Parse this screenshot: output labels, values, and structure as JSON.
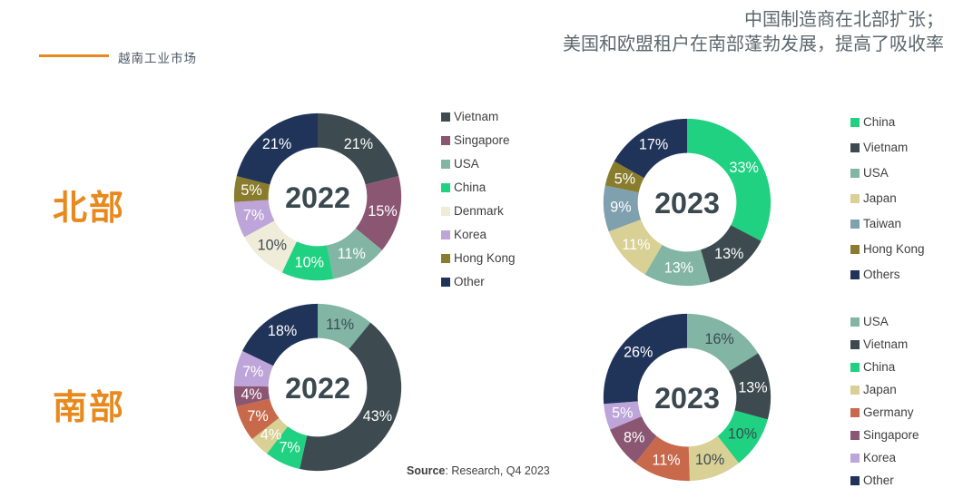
{
  "brand": {
    "label": "越南工业市场",
    "accent_color": "#E8891D"
  },
  "headline": {
    "line1": "中国制造商在北部扩张；",
    "line2": "美国和欧盟租户在南部蓬勃发展，提高了吸收率",
    "color": "#5C676D"
  },
  "row_labels": {
    "north": "北部",
    "south": "南部"
  },
  "source": {
    "bold": "Source",
    "rest": ": Research, Q4 2023"
  },
  "colors": {
    "vietnam_slate": "#3D4B50",
    "singapore_mauve": "#8A5672",
    "usa_sage": "#82B5A4",
    "china_emerald": "#1FD181",
    "denmark_cream": "#EFECDA",
    "korea_lavender": "#BDA4D9",
    "hongkong_olive": "#8A7C2D",
    "other_navy": "#20345A",
    "japan_khaki": "#D8D094",
    "taiwan_steel": "#7FA0AF",
    "germany_terracotta": "#C8694B",
    "dark_value_label": "#3C4A52",
    "year_text": "#3A484F"
  },
  "chart_data": [
    {
      "type": "pie",
      "id": "north-2022",
      "region": "北部",
      "center_label": "2022",
      "donut_hole_ratio": 0.59,
      "start_angle_deg": 0,
      "show_legend": true,
      "legend_position": "right",
      "slices": [
        {
          "label": "Vietnam",
          "value": 21,
          "display": "21%",
          "color": "#3D4B50",
          "label_color": "#FFFFFF"
        },
        {
          "label": "Singapore",
          "value": 15,
          "display": "15%",
          "color": "#8A5672",
          "label_color": "#FFFFFF"
        },
        {
          "label": "USA",
          "value": 11,
          "display": "11%",
          "color": "#82B5A4",
          "label_color": "#FFFFFF"
        },
        {
          "label": "China",
          "value": 10,
          "display": "10%",
          "color": "#1FD181",
          "label_color": "#FFFFFF"
        },
        {
          "label": "Denmark",
          "value": 10,
          "display": "10%",
          "color": "#EFECDA",
          "label_color": "#3C4A52"
        },
        {
          "label": "Korea",
          "value": 7,
          "display": "7%",
          "color": "#BDA4D9",
          "label_color": "#FFFFFF"
        },
        {
          "label": "Hong Kong",
          "value": 5,
          "display": "5%",
          "color": "#8A7C2D",
          "label_color": "#FFFFFF"
        },
        {
          "label": "Other",
          "value": 21,
          "display": "21%",
          "color": "#20345A",
          "label_color": "#FFFFFF"
        }
      ]
    },
    {
      "type": "pie",
      "id": "north-2023",
      "region": "北部",
      "center_label": "2023",
      "donut_hole_ratio": 0.59,
      "start_angle_deg": 0,
      "show_legend": true,
      "legend_position": "right",
      "slices": [
        {
          "label": "China",
          "value": 33,
          "display": "33%",
          "color": "#1FD181",
          "label_color": "#FFFFFF"
        },
        {
          "label": "Vietnam",
          "value": 13,
          "display": "13%",
          "color": "#3D4B50",
          "label_color": "#FFFFFF"
        },
        {
          "label": "USA",
          "value": 13,
          "display": "13%",
          "color": "#82B5A4",
          "label_color": "#FFFFFF"
        },
        {
          "label": "Japan",
          "value": 11,
          "display": "11%",
          "color": "#D8D094",
          "label_color": "#FFFFFF"
        },
        {
          "label": "Taiwan",
          "value": 9,
          "display": "9%",
          "color": "#7FA0AF",
          "label_color": "#FFFFFF"
        },
        {
          "label": "Hong Kong",
          "value": 5,
          "display": "5%",
          "color": "#8A7C2D",
          "label_color": "#FFFFFF"
        },
        {
          "label": "Others",
          "value": 17,
          "display": "17%",
          "color": "#20345A",
          "label_color": "#FFFFFF"
        }
      ]
    },
    {
      "type": "pie",
      "id": "south-2022",
      "region": "南部",
      "center_label": "2022",
      "donut_hole_ratio": 0.59,
      "start_angle_deg": 0,
      "show_legend": false,
      "slices": [
        {
          "label": "USA",
          "value": 11,
          "display": "11%",
          "color": "#82B5A4",
          "label_color": "#3C4A52"
        },
        {
          "label": "Vietnam",
          "value": 43,
          "display": "43%",
          "color": "#3D4B50",
          "label_color": "#FFFFFF"
        },
        {
          "label": "China",
          "value": 7,
          "display": "7%",
          "color": "#1FD181",
          "label_color": "#FFFFFF"
        },
        {
          "label": "Japan",
          "value": 4,
          "display": "4%",
          "color": "#D8D094",
          "label_color": "#FFFFFF"
        },
        {
          "label": "Germany",
          "value": 7,
          "display": "7%",
          "color": "#C8694B",
          "label_color": "#FFFFFF"
        },
        {
          "label": "Singapore",
          "value": 4,
          "display": "4%",
          "color": "#8A5672",
          "label_color": "#FFFFFF"
        },
        {
          "label": "Korea",
          "value": 7,
          "display": "7%",
          "color": "#BDA4D9",
          "label_color": "#FFFFFF"
        },
        {
          "label": "Other",
          "value": 18,
          "display": "18%",
          "color": "#20345A",
          "label_color": "#FFFFFF"
        }
      ]
    },
    {
      "type": "pie",
      "id": "south-2023",
      "region": "南部",
      "center_label": "2023",
      "donut_hole_ratio": 0.59,
      "start_angle_deg": 0,
      "show_legend": true,
      "legend_position": "right",
      "slices": [
        {
          "label": "USA",
          "value": 16,
          "display": "16%",
          "color": "#82B5A4",
          "label_color": "#3C4A52"
        },
        {
          "label": "Vietnam",
          "value": 13,
          "display": "13%",
          "color": "#3D4B50",
          "label_color": "#FFFFFF"
        },
        {
          "label": "China",
          "value": 10,
          "display": "10%",
          "color": "#1FD181",
          "label_color": "#3C4A52"
        },
        {
          "label": "Japan",
          "value": 10,
          "display": "10%",
          "color": "#D8D094",
          "label_color": "#3C4A52"
        },
        {
          "label": "Germany",
          "value": 11,
          "display": "11%",
          "color": "#C8694B",
          "label_color": "#FFFFFF"
        },
        {
          "label": "Singapore",
          "value": 8,
          "display": "8%",
          "color": "#8A5672",
          "label_color": "#FFFFFF"
        },
        {
          "label": "Korea",
          "value": 5,
          "display": "5%",
          "color": "#BDA4D9",
          "label_color": "#FFFFFF"
        },
        {
          "label": "Other",
          "value": 26,
          "display": "26%",
          "color": "#20345A",
          "label_color": "#FFFFFF"
        }
      ]
    }
  ]
}
